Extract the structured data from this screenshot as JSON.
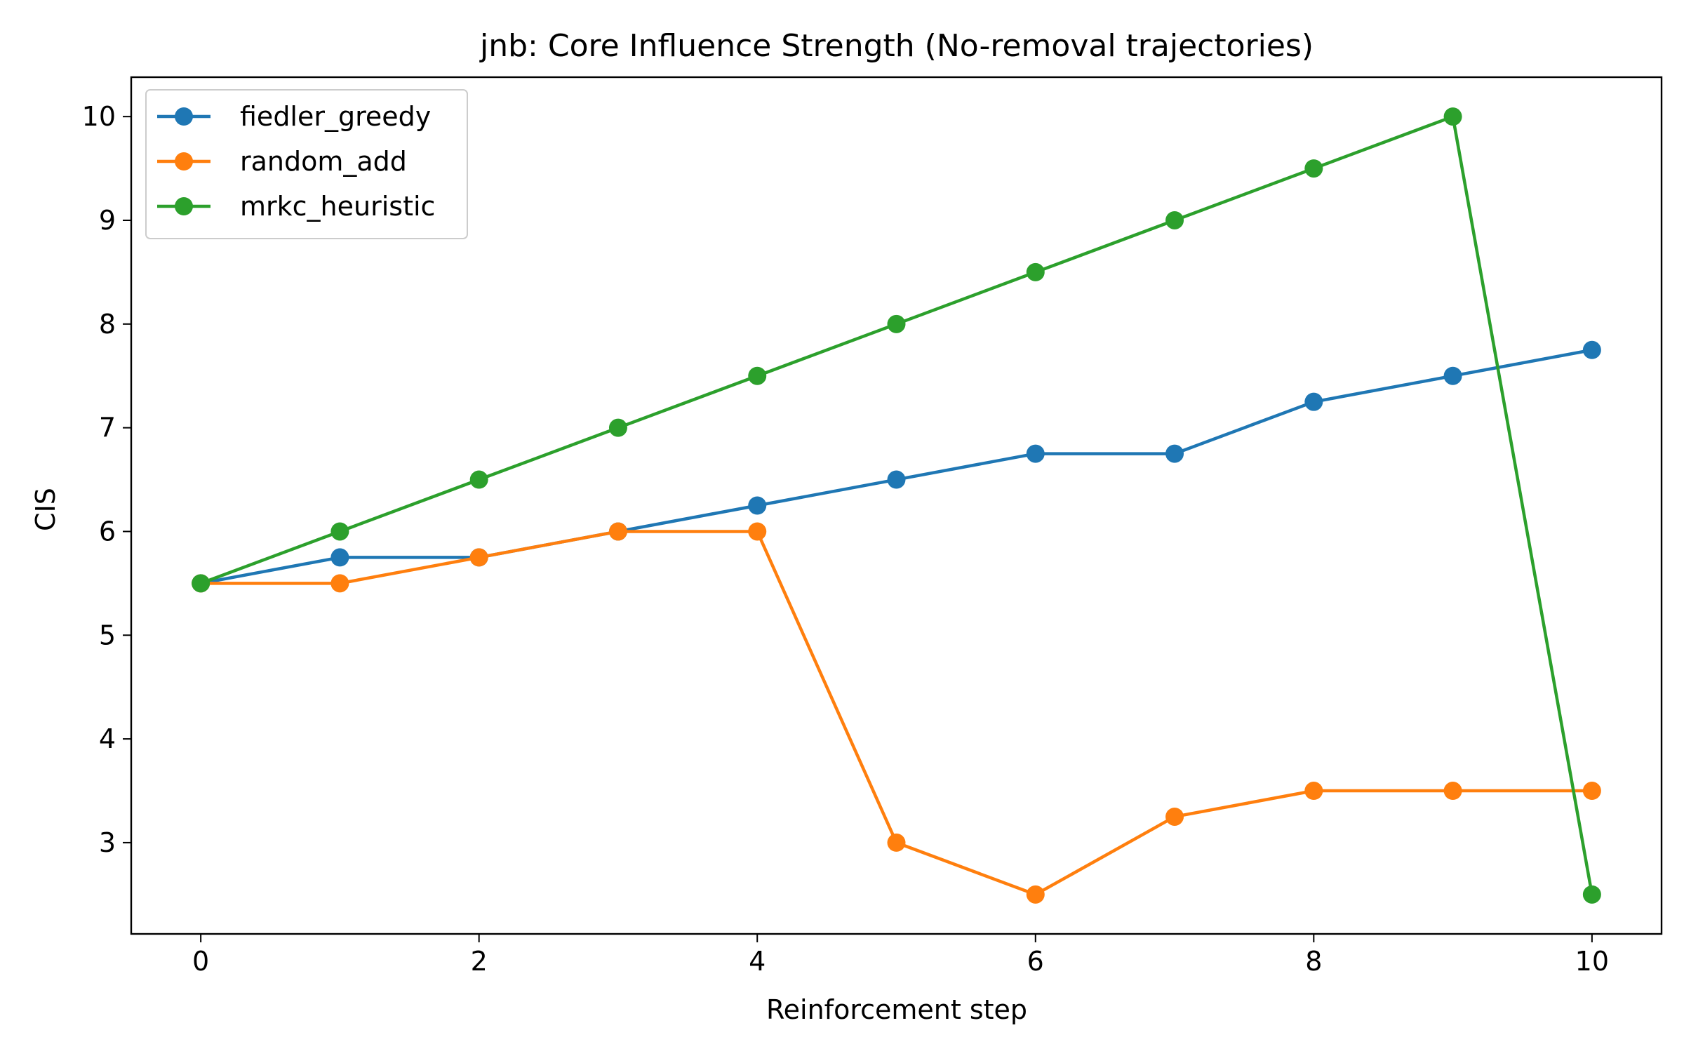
{
  "chart_data": {
    "type": "line",
    "title": "jnb: Core Influence Strength (No-removal trajectories)",
    "xlabel": "Reinforcement step",
    "ylabel": "CIS",
    "xlim": [
      -0.5,
      10.5
    ],
    "ylim": [
      2.12,
      10.38
    ],
    "xticks": [
      0,
      2,
      4,
      6,
      8,
      10
    ],
    "yticks": [
      3,
      4,
      5,
      6,
      7,
      8,
      9,
      10
    ],
    "grid": false,
    "legend_position": "top-left",
    "x": [
      0,
      1,
      2,
      3,
      4,
      5,
      6,
      7,
      8,
      9,
      10
    ],
    "series": [
      {
        "name": "fiedler_greedy",
        "color": "#1f77b4",
        "values": [
          5.5,
          5.75,
          5.75,
          6.0,
          6.25,
          6.5,
          6.75,
          6.75,
          7.25,
          7.5,
          7.75
        ]
      },
      {
        "name": "random_add",
        "color": "#ff7f0e",
        "values": [
          5.5,
          5.5,
          5.75,
          6.0,
          6.0,
          3.0,
          2.5,
          3.25,
          3.5,
          3.5,
          3.5
        ]
      },
      {
        "name": "mrkc_heuristic",
        "color": "#2ca02c",
        "values": [
          5.5,
          6.0,
          6.5,
          7.0,
          7.5,
          8.0,
          8.5,
          9.0,
          9.5,
          10.0,
          2.5
        ]
      }
    ]
  }
}
